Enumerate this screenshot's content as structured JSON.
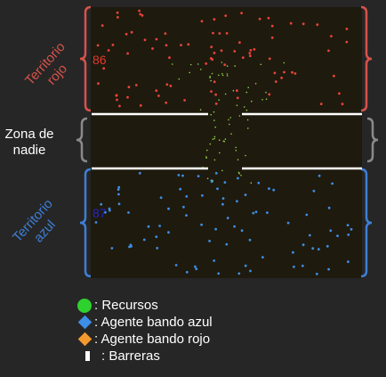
{
  "zones": {
    "red_label": "Territorio rojo",
    "neutral_label": "Zona de nadie",
    "blue_label": "Territorio azul"
  },
  "counts": {
    "red": "86",
    "blue": "87"
  },
  "legend": {
    "resources": ": Recursos",
    "blue_agent": ": Agente bando azul",
    "red_agent": ": Agente bando rojo",
    "barriers": ": Barreras"
  },
  "colors": {
    "red_agent": "#e8443a",
    "blue_agent": "#3c8ee6",
    "resource": "#8fd64a",
    "barrier": "#ffffff",
    "bracket_red": "#d8524a",
    "bracket_blue": "#3d7fd6",
    "bracket_neutral": "#8a8a8a",
    "legend_blue_diamond": "#3c8ee6",
    "legend_red_diamond": "#f39a2e"
  },
  "icons": {
    "resources": "green-circle",
    "blue_agent": "blue-diamond",
    "red_agent": "orange-diamond",
    "barriers": "white-bar"
  }
}
